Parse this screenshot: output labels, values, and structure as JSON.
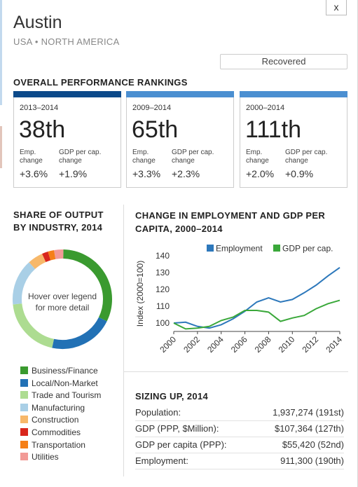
{
  "header": {
    "close_label": "x",
    "city": "Austin",
    "region": "USA • NORTH AMERICA",
    "status": "Recovered"
  },
  "rankings": {
    "title": "OVERALL PERFORMANCE RANKINGS",
    "cards": [
      {
        "period": "2013–2014",
        "rank": "38th",
        "emp_label": "Emp. change",
        "gdp_label": "GDP per cap. change",
        "emp": "+3.6%",
        "gdp": "+1.9%",
        "color": "#0c4a8a"
      },
      {
        "period": "2009–2014",
        "rank": "65th",
        "emp_label": "Emp. change",
        "gdp_label": "GDP per cap. change",
        "emp": "+3.3%",
        "gdp": "+2.3%",
        "color": "#4b8fd1"
      },
      {
        "period": "2000–2014",
        "rank": "111th",
        "emp_label": "Emp. change",
        "gdp_label": "GDP per cap. change",
        "emp": "+2.0%",
        "gdp": "+0.9%",
        "color": "#4b8fd1"
      }
    ]
  },
  "share": {
    "title_line1": "SHARE OF OUTPUT",
    "title_line2": "BY INDUSTRY, 2014",
    "center_line1": "Hover over legend",
    "center_line2": "for more detail",
    "segments": [
      {
        "name": "Business/Finance",
        "value": 32,
        "color": "#3a9a2f"
      },
      {
        "name": "Local/Non-Market",
        "value": 21,
        "color": "#2271b5"
      },
      {
        "name": "Trade and Tourism",
        "value": 20,
        "color": "#addc91"
      },
      {
        "name": "Manufacturing",
        "value": 15,
        "color": "#a9cfe6"
      },
      {
        "name": "Construction",
        "value": 5,
        "color": "#f7b86a"
      },
      {
        "name": "Commodities",
        "value": 2,
        "color": "#d9261c"
      },
      {
        "name": "Transportation",
        "value": 2,
        "color": "#f57f17"
      },
      {
        "name": "Utilities",
        "value": 3,
        "color": "#f29a96"
      }
    ]
  },
  "change": {
    "title_line1": "CHANGE IN EMPLOYMENT AND GDP PER",
    "title_line2": "CAPITA, 2000–2014"
  },
  "chart_data": {
    "type": "line",
    "title": "CHANGE IN EMPLOYMENT AND GDP PER CAPITA, 2000–2014",
    "xlabel": "",
    "ylabel": "Index (2000=100)",
    "x": [
      2000,
      2001,
      2002,
      2003,
      2004,
      2005,
      2006,
      2007,
      2008,
      2009,
      2010,
      2011,
      2012,
      2013,
      2014
    ],
    "x_ticks": [
      "2000",
      "2002",
      "2004",
      "2006",
      "2008",
      "2010",
      "2012",
      "2014"
    ],
    "y_ticks": [
      "100",
      "110",
      "120",
      "130",
      "140"
    ],
    "ylim": [
      95,
      140
    ],
    "xlim": [
      2000,
      2014
    ],
    "legend": "top",
    "series": [
      {
        "name": "Employment",
        "color": "#2d78bb",
        "values": [
          100,
          100.5,
          98,
          97,
          99,
          102.5,
          107,
          112.5,
          115,
          112.5,
          114,
          118,
          122.5,
          128,
          133
        ]
      },
      {
        "name": "GDP per cap.",
        "color": "#3aa83a",
        "values": [
          100,
          96.5,
          97,
          98,
          101.5,
          103.5,
          107.5,
          107.5,
          106.5,
          101,
          103,
          104.5,
          108.5,
          111.5,
          113.5
        ]
      }
    ]
  },
  "sizing": {
    "title": "SIZING UP, 2014",
    "rows": [
      {
        "label": "Population:",
        "value": "1,937,274 (191st)"
      },
      {
        "label": "GDP (PPP, $Million):",
        "value": "$107,364 (127th)"
      },
      {
        "label": "GDP per capita (PPP):",
        "value": "$55,420 (52nd)"
      },
      {
        "label": "Employment:",
        "value": "911,300 (190th)"
      }
    ]
  }
}
